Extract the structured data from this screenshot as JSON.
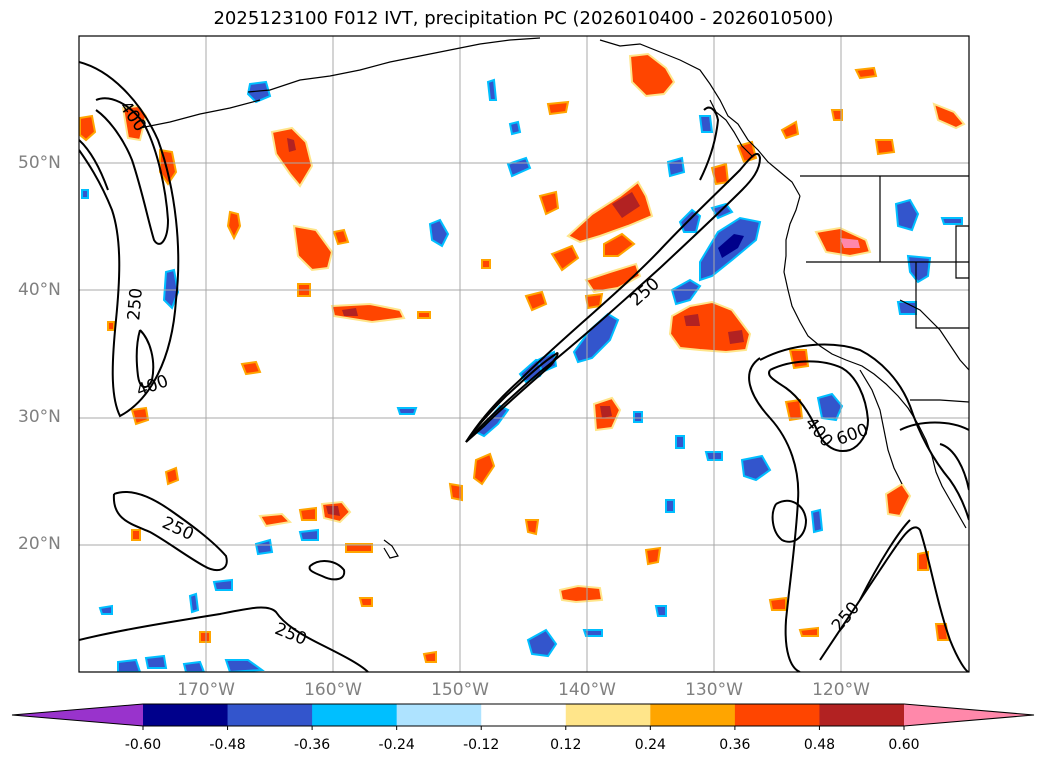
{
  "title": "2025123100 F012 IVT, precipitation PC (2026010400 - 2026010500)",
  "latitude_labels": [
    "50°N",
    "40°N",
    "30°N",
    "20°N"
  ],
  "longitude_labels": [
    "170°W",
    "160°W",
    "150°W",
    "140°W",
    "130°W",
    "120°W"
  ],
  "contour_labels": {
    "c400_nw": "400",
    "c250_west": "250",
    "c400_west": "400",
    "c250_river": "250",
    "c250_subtrop": "250",
    "c250_south": "250",
    "c400_east": "400",
    "c600_east": "600",
    "c250_se": "250"
  },
  "colorbar": {
    "bounds": [
      "-0.60",
      "-0.48",
      "-0.36",
      "-0.24",
      "-0.12",
      "0.12",
      "0.24",
      "0.36",
      "0.48",
      "0.60"
    ],
    "colors": [
      "#9933cc",
      "#00008b",
      "#3355cc",
      "#00bfff",
      "#aee3ff",
      "#ffffff",
      "#ffe58a",
      "#ffa500",
      "#ff4500",
      "#b22222",
      "#ff88aa"
    ]
  },
  "colors": {
    "frame": "#000000",
    "grid": "#a9a9a9",
    "contour": "#000000",
    "coast": "#000000",
    "label_gray": "#808080"
  }
}
